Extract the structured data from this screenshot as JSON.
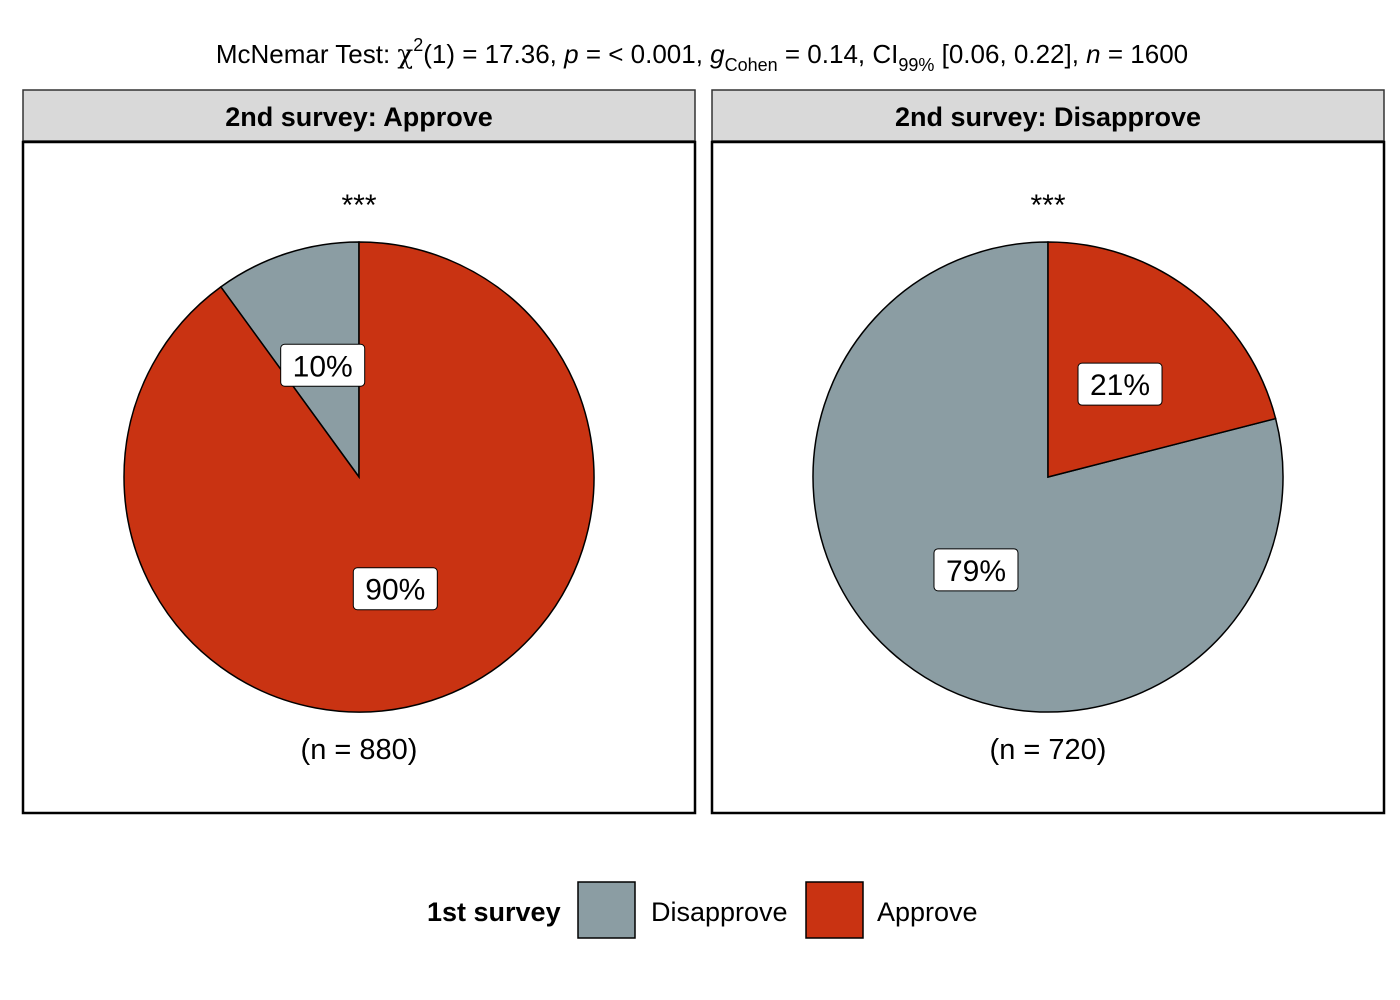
{
  "chart_data": {
    "type": "pie",
    "title": {
      "test_name": "McNemar Test: ",
      "chi_symbol": "χ",
      "chi_sup": "2",
      "df": "(1) = 17.36, ",
      "p_symbol": "p",
      "p_value": " = < 0.001, ",
      "g_symbol": "g",
      "g_sub": "Cohen",
      "g_value": " = 0.14, CI",
      "ci_sub": "99%",
      "ci_value": " [0.06, 0.22], ",
      "n_symbol": "n",
      "n_value": " = 1600"
    },
    "legend": {
      "title": "1st survey",
      "entries": [
        {
          "label": "Disapprove",
          "color": "#8B9DA3"
        },
        {
          "label": "Approve",
          "color": "#C93312"
        }
      ]
    },
    "panels": [
      {
        "strip_label": "2nd survey: Approve",
        "significance": "***",
        "n_label": "(n = 880)",
        "slices": [
          {
            "category": "Disapprove",
            "percent": 10,
            "label": "10%",
            "color": "#8B9DA3"
          },
          {
            "category": "Approve",
            "percent": 90,
            "label": "90%",
            "color": "#C93312"
          }
        ]
      },
      {
        "strip_label": "2nd survey: Disapprove",
        "significance": "***",
        "n_label": "(n = 720)",
        "slices": [
          {
            "category": "Disapprove",
            "percent": 79,
            "label": "79%",
            "color": "#8B9DA3"
          },
          {
            "category": "Approve",
            "percent": 21,
            "label": "21%",
            "color": "#C93312"
          }
        ]
      }
    ]
  }
}
